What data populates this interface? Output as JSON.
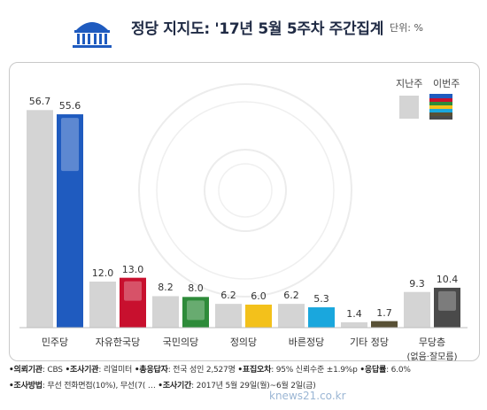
{
  "header": {
    "title": "정당 지지도: '17년 5월 5주차 주간집계",
    "unit": "단위: %"
  },
  "legend": {
    "prev_label": "지난주",
    "curr_label": "이번주"
  },
  "colors": {
    "prev_bar": "#d4d4d4",
    "minju": "#1f5bbf",
    "jayu": "#c8102e",
    "kookmin": "#2e8b3a",
    "jeongui": "#f3c11b",
    "bareun": "#1aa7dd",
    "etc": "#585035",
    "none": "#4a4a4a"
  },
  "chart_data": {
    "type": "bar",
    "title": "정당 지지도: '17년 5월 5주차 주간집계",
    "unit": "%",
    "categories": [
      "민주당",
      "자유한국당",
      "국민의당",
      "정의당",
      "바른정당",
      "기타 정당",
      "무당층"
    ],
    "category_notes": [
      "",
      "",
      "",
      "",
      "",
      "",
      "(없음·잘모름)"
    ],
    "series": [
      {
        "name": "지난주",
        "values": [
          56.7,
          12.0,
          8.2,
          6.2,
          6.2,
          1.4,
          9.3
        ]
      },
      {
        "name": "이번주",
        "values": [
          55.6,
          13.0,
          8.0,
          6.0,
          5.3,
          1.7,
          10.4
        ]
      }
    ],
    "value_labels": {
      "prev": [
        "56.7",
        "12.0",
        "8.2",
        "6.2",
        "6.2",
        "1.4",
        "9.3"
      ],
      "curr": [
        "55.6",
        "13.0",
        "8.0",
        "6.0",
        "5.3",
        "1.7",
        "10.4"
      ]
    },
    "ylim": [
      0,
      60
    ],
    "grid": false,
    "legend_position": "top-right"
  },
  "footer": {
    "row1": [
      {
        "k": "•의뢰기관",
        "v": ": CBS"
      },
      {
        "k": "•조사기관",
        "v": ": 리얼미터"
      },
      {
        "k": "•총응답자",
        "v": ": 전국 성인 2,527명"
      },
      {
        "k": "•표집오차",
        "v": ": 95% 신뢰수준 ±1.9%p"
      },
      {
        "k": "•응답률",
        "v": ": 6.0%"
      }
    ],
    "row2": [
      {
        "k": "•조사방법",
        "v": ": 무선 전화면접(10%), 무선(7("
      },
      {
        "k": "",
        "v": "…"
      },
      {
        "k": "•조사기간",
        "v": ": 2017년 5월 29일(월)~6월 2일(금)"
      }
    ]
  },
  "watermark": "knews21.co.kr"
}
